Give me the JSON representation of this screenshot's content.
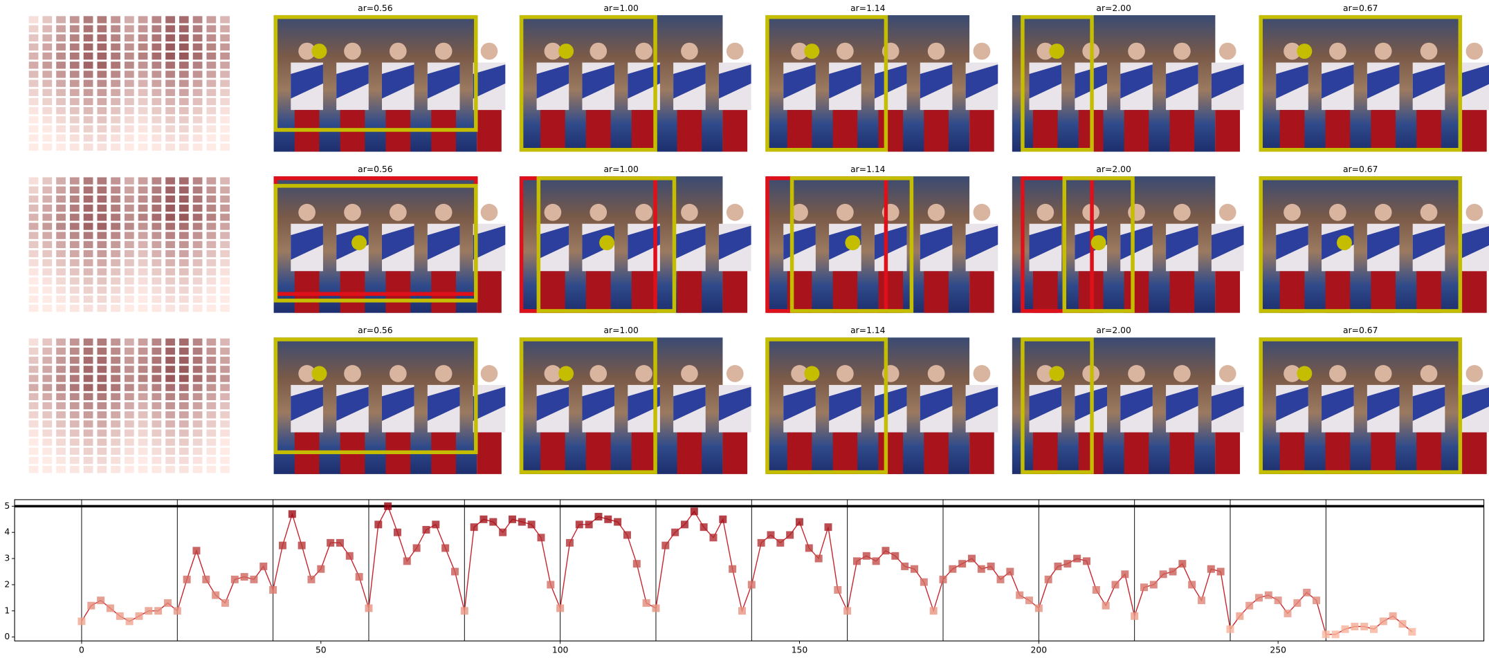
{
  "panels": {
    "titles": [
      [
        "ar=0.56",
        "ar=1.00",
        "ar=1.14",
        "ar=2.00",
        "ar=0.67"
      ],
      [
        "ar=0.56",
        "ar=1.00",
        "ar=1.14",
        "ar=2.00",
        "ar=0.67"
      ],
      [
        "ar=0.56",
        "ar=1.00",
        "ar=1.14",
        "ar=2.00",
        "ar=0.67"
      ]
    ]
  },
  "chart_data": {
    "type": "line",
    "color": "#c8202a",
    "colormap": "Reds",
    "x": [
      0,
      2,
      4,
      6,
      8,
      10,
      12,
      14,
      16,
      18,
      20,
      22,
      24,
      26,
      28,
      30,
      32,
      34,
      36,
      38,
      40,
      42,
      44,
      46,
      48,
      50,
      52,
      54,
      56,
      58,
      60,
      62,
      64,
      66,
      68,
      70,
      72,
      74,
      76,
      78,
      80,
      82,
      84,
      86,
      88,
      90,
      92,
      94,
      96,
      98,
      100,
      102,
      104,
      106,
      108,
      110,
      112,
      114,
      116,
      118,
      120,
      122,
      124,
      126,
      128,
      130,
      132,
      134,
      136,
      138,
      140,
      142,
      144,
      146,
      148,
      150,
      152,
      154,
      156,
      158,
      160,
      162,
      164,
      166,
      168,
      170,
      172,
      174,
      176,
      178,
      180,
      182,
      184,
      186,
      188,
      190,
      192,
      194,
      196,
      198,
      200,
      202,
      204,
      206,
      208,
      210,
      212,
      214,
      216,
      218,
      220,
      222,
      224,
      226,
      228,
      230,
      232,
      234,
      236,
      238,
      240,
      242,
      244,
      246,
      248,
      250,
      252,
      254,
      256,
      258,
      260,
      262,
      264,
      266,
      268,
      270,
      272,
      274,
      276,
      278
    ],
    "values": [
      0.6,
      1.2,
      1.4,
      1.1,
      0.8,
      0.6,
      0.8,
      1.0,
      1.0,
      1.3,
      1.0,
      2.2,
      3.3,
      2.2,
      1.6,
      1.3,
      2.2,
      2.3,
      2.2,
      2.7,
      1.8,
      3.5,
      4.7,
      3.5,
      2.2,
      2.6,
      3.6,
      3.6,
      3.1,
      2.3,
      1.1,
      4.3,
      5.0,
      4.0,
      2.9,
      3.4,
      4.1,
      4.3,
      3.4,
      2.5,
      1.0,
      4.2,
      4.5,
      4.4,
      4.0,
      4.5,
      4.4,
      4.3,
      3.8,
      2.0,
      1.1,
      3.6,
      4.3,
      4.3,
      4.6,
      4.5,
      4.4,
      3.9,
      2.8,
      1.3,
      1.1,
      3.5,
      4.0,
      4.3,
      4.8,
      4.2,
      3.8,
      4.5,
      2.6,
      1.0,
      2.0,
      3.6,
      3.9,
      3.6,
      3.9,
      4.4,
      3.4,
      3.0,
      4.2,
      1.8,
      1.0,
      2.9,
      3.1,
      2.9,
      3.3,
      3.1,
      2.7,
      2.6,
      2.1,
      1.0,
      2.2,
      2.6,
      2.8,
      3.0,
      2.6,
      2.7,
      2.2,
      2.5,
      1.6,
      1.4,
      1.1,
      2.2,
      2.7,
      2.8,
      3.0,
      2.9,
      1.8,
      1.2,
      2.0,
      2.4,
      0.8,
      1.9,
      2.0,
      2.4,
      2.5,
      2.8,
      2.0,
      1.4,
      2.6,
      2.5,
      0.3,
      0.8,
      1.2,
      1.5,
      1.6,
      1.4,
      0.9,
      1.3,
      1.7,
      1.4,
      0.1,
      0.1,
      0.3,
      0.4,
      0.4,
      0.3,
      0.6,
      0.8,
      0.5,
      0.2
    ],
    "xlim": [
      -14,
      293
    ],
    "ylim": [
      -0.15,
      5.25
    ],
    "xticks": [
      0,
      50,
      100,
      150,
      200,
      250
    ],
    "yticks": [
      0,
      1,
      2,
      3,
      4,
      5
    ],
    "vlines": [
      0,
      20,
      40,
      60,
      80,
      100,
      120,
      140,
      160,
      180,
      200,
      220,
      240,
      260
    ],
    "hline": 5
  }
}
